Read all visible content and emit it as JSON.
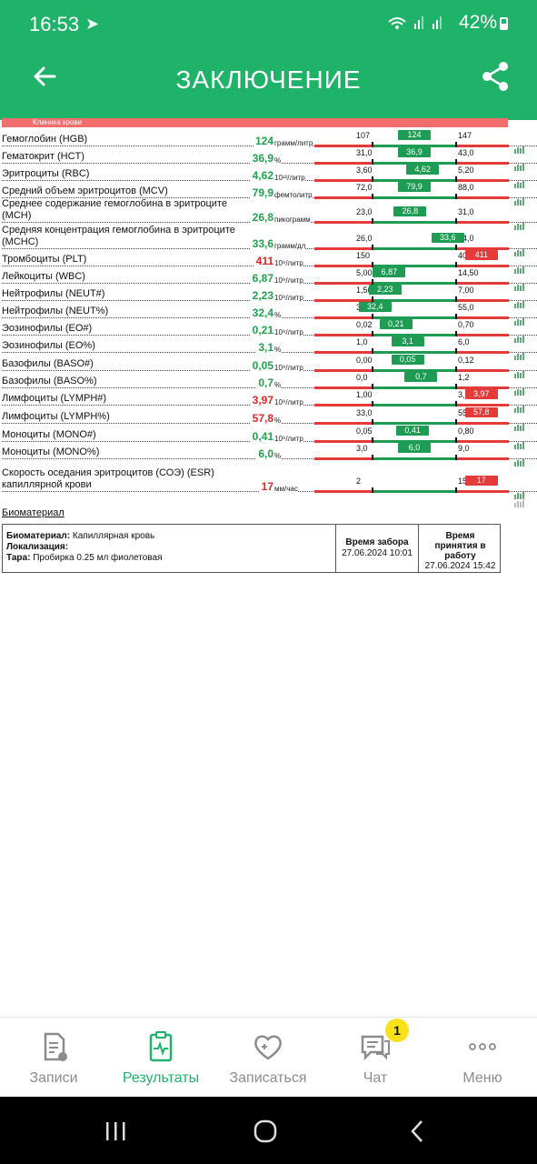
{
  "status": {
    "time": "16:53",
    "battery": "42%"
  },
  "header": {
    "title": "ЗАКЛЮЧЕНИЕ"
  },
  "section_label": "Клиника крови",
  "tests": [
    {
      "name": "Гемоглобин (HGB)",
      "value": "124",
      "unit": "грамм/литр",
      "low": "107",
      "high": "147",
      "mark": "124",
      "pos": 0.5,
      "status": "normal"
    },
    {
      "name": "Гематокрит (HCT)",
      "value": "36,9",
      "unit": "%",
      "low": "31,0",
      "high": "43,0",
      "mark": "36,9",
      "pos": 0.5,
      "status": "normal"
    },
    {
      "name": "Эритроциты (RBC)",
      "value": "4,62",
      "unit": "10¹²/литр",
      "low": "3,60",
      "high": "5,20",
      "mark": "4,62",
      "pos": 0.6,
      "status": "normal"
    },
    {
      "name": "Средний объем эритроцитов (MCV)",
      "value": "79,9",
      "unit": "фемтолитр",
      "low": "72,0",
      "high": "88,0",
      "mark": "79,9",
      "pos": 0.5,
      "status": "normal"
    },
    {
      "name": "Среднее содержание гемоглобина в эритроците (MCH)",
      "value": "26,8",
      "unit": "пикограмм",
      "low": "23,0",
      "high": "31,0",
      "mark": "26,8",
      "pos": 0.45,
      "status": "normal"
    },
    {
      "name": "Средняя концентрация гемоглобина в эритроците (MCHC)",
      "value": "33,6",
      "unit": "грамм/дл",
      "low": "26,0",
      "high": "34,0",
      "mark": "33,6",
      "pos": 0.9,
      "status": "normal"
    },
    {
      "name": "Тромбоциты (PLT)",
      "value": "411",
      "unit": "10⁹/литр",
      "low": "150",
      "high": "400",
      "mark": "411",
      "pos": 1.15,
      "status": "high"
    },
    {
      "name": "Лейкоциты (WBC)",
      "value": "6,87",
      "unit": "10⁹/литр",
      "low": "5,00",
      "high": "14,50",
      "mark": "6,87",
      "pos": 0.2,
      "status": "normal"
    },
    {
      "name": "Нейтрофилы (NEUT#)",
      "value": "2,23",
      "unit": "10⁹/литр",
      "low": "1,50",
      "high": "7,00",
      "mark": "2,23",
      "pos": 0.15,
      "status": "normal"
    },
    {
      "name": "Нейтрофилы (NEUT%)",
      "value": "32,4",
      "unit": "%",
      "low": "32,0",
      "high": "55,0",
      "mark": "32,4",
      "pos": 0.03,
      "status": "normal"
    },
    {
      "name": "Эозинофилы (EO#)",
      "value": "0,21",
      "unit": "10⁹/литр",
      "low": "0,02",
      "high": "0,70",
      "mark": "0,21",
      "pos": 0.28,
      "status": "normal"
    },
    {
      "name": "Эозинофилы (EO%)",
      "value": "3,1",
      "unit": "%",
      "low": "1,0",
      "high": "6,0",
      "mark": "3,1",
      "pos": 0.42,
      "status": "normal"
    },
    {
      "name": "Базофилы (BASO#)",
      "value": "0,05",
      "unit": "10⁹/литр",
      "low": "0,00",
      "high": "0,12",
      "mark": "0,05",
      "pos": 0.42,
      "status": "normal"
    },
    {
      "name": "Базофилы (BASO%)",
      "value": "0,7",
      "unit": "%",
      "low": "0,0",
      "high": "1,2",
      "mark": "0,7",
      "pos": 0.58,
      "status": "normal"
    },
    {
      "name": "Лимфоциты (LYMPH#)",
      "value": "3,97",
      "unit": "10⁹/литр",
      "low": "1,00",
      "high": "3,70",
      "mark": "3,97",
      "pos": 1.15,
      "status": "high"
    },
    {
      "name": "Лимфоциты (LYMPH%)",
      "value": "57,8",
      "unit": "%",
      "low": "33,0",
      "high": "55,0",
      "mark": "57,8",
      "pos": 1.15,
      "status": "high"
    },
    {
      "name": "Моноциты (MONO#)",
      "value": "0,41",
      "unit": "10⁹/литр",
      "low": "0,05",
      "high": "0,80",
      "mark": "0,41",
      "pos": 0.48,
      "status": "normal"
    },
    {
      "name": "Моноциты (MONO%)",
      "value": "6,0",
      "unit": "%",
      "low": "3,0",
      "high": "9,0",
      "mark": "6,0",
      "pos": 0.5,
      "status": "normal"
    },
    {
      "name": "Скорость оседания эритроцитов (СОЭ) (ESR) капиллярной крови",
      "value": "17",
      "unit": "мм/час",
      "low": "2",
      "high": "15",
      "mark": "17",
      "pos": 1.15,
      "status": "high"
    }
  ],
  "biomaterial": {
    "section_title": "Биоматериал",
    "material_label": "Биоматериал:",
    "material_value": "Капиллярная кровь",
    "localization_label": "Локализация:",
    "container_label": "Тара:",
    "container_value": "Пробирка 0.25 мл фиолетовая",
    "collect_label": "Время забора",
    "collect_time": "27.06.2024 10:01",
    "accept_label": "Время принятия в работу",
    "accept_time": "27.06.2024 15:42"
  },
  "nav": {
    "items": [
      {
        "label": "Записи",
        "icon": "document-icon"
      },
      {
        "label": "Результаты",
        "icon": "clipboard-pulse-icon"
      },
      {
        "label": "Записаться",
        "icon": "heart-plus-icon"
      },
      {
        "label": "Чат",
        "icon": "chat-icon"
      },
      {
        "label": "Меню",
        "icon": "more-dots-icon"
      }
    ],
    "active": "Результаты",
    "chat_badge": "1"
  },
  "colors": {
    "brand": "#1fb36a",
    "normal": "#1e9c54",
    "alert": "#e43a3a"
  }
}
